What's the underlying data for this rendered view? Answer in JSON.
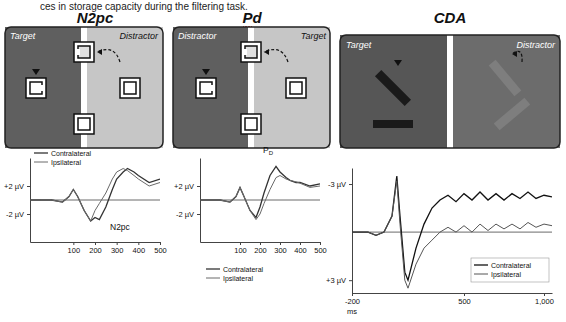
{
  "caption": "ces in storage capacity during the filtering task.",
  "chart_data": [
    {
      "type": "line",
      "title": "N2pc",
      "annotations": [
        "Target",
        "Distractor",
        "N2pc"
      ],
      "x": [
        -100,
        -50,
        0,
        50,
        80,
        100,
        120,
        150,
        180,
        200,
        220,
        250,
        280,
        300,
        330,
        350,
        380,
        400,
        450,
        500
      ],
      "series": [
        {
          "name": "Contralateral",
          "color": "#333333",
          "values": [
            0,
            0,
            0,
            -0.3,
            0.5,
            1.5,
            0.5,
            -1.5,
            -3,
            -2.5,
            -2.8,
            -1,
            1.5,
            3,
            4,
            4.5,
            4,
            3.5,
            2.5,
            3
          ]
        },
        {
          "name": "Ipsilateral",
          "color": "#6a6a6a",
          "values": [
            0,
            0,
            0,
            -0.3,
            0.5,
            1.5,
            0.5,
            -1.5,
            -3,
            -1.5,
            -0.5,
            1,
            3,
            4,
            4.5,
            4.2,
            3.5,
            3,
            2,
            2.5
          ]
        }
      ],
      "xlim": [
        -100,
        500
      ],
      "xticks": [
        100,
        200,
        300,
        400,
        500
      ],
      "ylim": [
        -6,
        6
      ],
      "yticks": [
        {
          "value": 2,
          "label": "+2 µV"
        },
        {
          "value": -2,
          "label": "-2 µV"
        }
      ],
      "legend": "upper left"
    },
    {
      "type": "line",
      "title": "Pd",
      "annotations": [
        "Distractor",
        "Target",
        "PD"
      ],
      "x": [
        -100,
        -50,
        0,
        50,
        80,
        100,
        120,
        150,
        180,
        200,
        220,
        250,
        280,
        300,
        330,
        350,
        380,
        400,
        450,
        500
      ],
      "series": [
        {
          "name": "Contralateral",
          "color": "#333333",
          "values": [
            0,
            0,
            0,
            -0.3,
            0.5,
            1.8,
            0.5,
            -1.5,
            -2.5,
            -1,
            1,
            3.5,
            4.8,
            4,
            3.2,
            2.8,
            2.5,
            2.5,
            2,
            2.3
          ]
        },
        {
          "name": "Ipsilateral",
          "color": "#6a6a6a",
          "values": [
            0,
            0,
            0,
            -0.3,
            0.5,
            1.8,
            0.5,
            -1.5,
            -2.8,
            -2,
            -0.5,
            1.5,
            3.2,
            3.5,
            3,
            2.8,
            2.6,
            2.4,
            1.8,
            2
          ]
        }
      ],
      "xlim": [
        -100,
        500
      ],
      "xticks": [
        100,
        200,
        300,
        400,
        500
      ],
      "ylim": [
        -6,
        6
      ],
      "yticks": [
        {
          "value": 2,
          "label": "+2 µV"
        },
        {
          "value": -2,
          "label": "-2 µV"
        }
      ],
      "legend": "lower left"
    },
    {
      "type": "line",
      "title": "CDA",
      "annotations": [
        "Target",
        "Distractor"
      ],
      "xlabel": "ms",
      "x": [
        -200,
        -100,
        -50,
        0,
        50,
        80,
        100,
        130,
        150,
        200,
        250,
        300,
        350,
        400,
        450,
        500,
        550,
        600,
        650,
        700,
        750,
        800,
        850,
        900,
        950,
        1000,
        1050
      ],
      "series": [
        {
          "name": "Contralateral",
          "color": "#111111",
          "values": [
            0,
            0,
            0.2,
            0,
            -1,
            -3.5,
            -1,
            2.5,
            3,
            1,
            -0.5,
            -1.5,
            -2,
            -2.3,
            -1.9,
            -2.4,
            -2,
            -2.5,
            -2,
            -2.4,
            -2,
            -2.4,
            -2.1,
            -2.5,
            -2.1,
            -2.3,
            -2.2
          ]
        },
        {
          "name": "Ipsilateral",
          "color": "#555555",
          "values": [
            0,
            0,
            0.2,
            0,
            -1,
            -3.2,
            -0.5,
            3,
            3.5,
            2,
            1,
            0.5,
            0,
            -0.3,
            0,
            -0.4,
            0,
            -0.5,
            -0.1,
            -0.5,
            -0.2,
            -0.5,
            -0.2,
            -0.6,
            -0.3,
            -0.5,
            -0.4
          ]
        }
      ],
      "xlim": [
        -200,
        1050
      ],
      "xticks": [
        -200,
        500,
        {
          "value": 1000,
          "label": "1,000"
        }
      ],
      "ylim": [
        3.8,
        -4
      ],
      "yticks": [
        {
          "value": -3,
          "label": "-3 µV"
        },
        {
          "value": 3,
          "label": "+3 µV"
        }
      ],
      "legend": "lower right"
    }
  ]
}
